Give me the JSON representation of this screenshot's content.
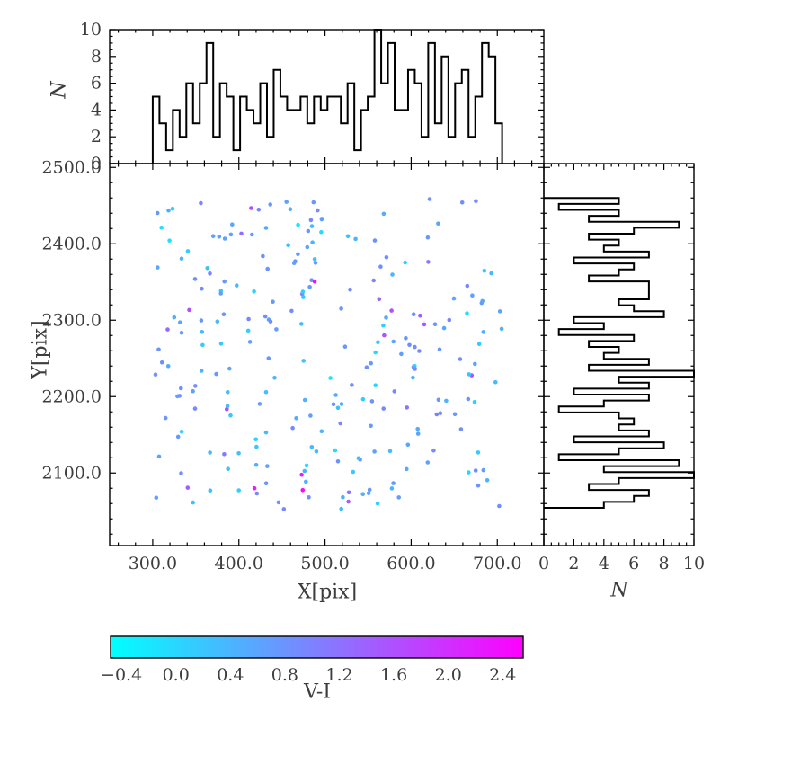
{
  "figure": {
    "bg": "#ffffff",
    "spine_color": "#000000",
    "series_color": "#000000",
    "tick_label_color": "#3d3d3d"
  },
  "chart_data": [
    {
      "id": "top_histogram",
      "type": "bar",
      "style": "step-histogram",
      "ylabel": "N",
      "ylim": [
        0,
        10
      ],
      "yticks": [
        0,
        2,
        4,
        6,
        8,
        10
      ],
      "ytick_labels": [
        "0",
        "2",
        "4",
        "6",
        "8",
        "10"
      ],
      "xlim": [
        250,
        754
      ],
      "bin_start": 300,
      "bin_width": 7.8,
      "values": [
        5,
        3,
        1,
        4,
        2,
        6,
        3,
        6,
        9,
        2,
        6,
        5,
        1,
        5,
        4,
        3,
        6,
        2,
        7,
        5,
        4,
        4,
        5,
        3,
        5,
        4,
        5,
        5,
        3,
        6,
        1,
        4,
        5,
        10,
        6,
        9,
        4,
        4,
        7,
        6,
        2,
        9,
        3,
        8,
        2,
        6,
        7,
        2,
        5,
        9,
        8,
        3
      ]
    },
    {
      "id": "scatter_main",
      "type": "scatter",
      "xlabel": "X[pix]",
      "ylabel": "Y[pix]",
      "xlim": [
        250,
        754
      ],
      "ylim": [
        2005,
        2505
      ],
      "xticks": [
        300,
        400,
        500,
        600,
        700
      ],
      "xtick_labels": [
        "300.0",
        "400.0",
        "500.0",
        "600.0",
        "700.0"
      ],
      "yticks": [
        2100,
        2200,
        2300,
        2400,
        2500
      ],
      "ytick_labels": [
        "2100.0",
        "2200.0",
        "2300.0",
        "2400.0",
        "2500.0"
      ],
      "x_minor_step": 20,
      "y_minor_step": 20,
      "color_by": "V-I",
      "marker_size_px": 4.6,
      "points_generator": {
        "seed": 20240613,
        "count": 250,
        "x_range": [
          300,
          706
        ],
        "y_range": [
          2052,
          2460
        ],
        "vi_main_range": [
          -0.25,
          0.95
        ],
        "vi_purple_range": [
          0.95,
          1.7
        ],
        "purple_fraction": 0.06,
        "vi_magenta_range": [
          2.15,
          2.5
        ],
        "magenta_fraction": 0.013
      }
    },
    {
      "id": "right_histogram",
      "type": "barh",
      "style": "step-histogram",
      "xlabel": "N",
      "xlim": [
        0,
        10
      ],
      "xticks": [
        0,
        2,
        4,
        6,
        8,
        10
      ],
      "xtick_labels": [
        "0",
        "2",
        "4",
        "6",
        "8",
        "10"
      ],
      "ylim": [
        2005,
        2505
      ],
      "bin_start": 2460,
      "bin_width": 7.8,
      "values": [
        5,
        1,
        5,
        3,
        9,
        6,
        3,
        5,
        4,
        7,
        2,
        6,
        5,
        3,
        7,
        7,
        7,
        5,
        6,
        8,
        2,
        4,
        1,
        6,
        3,
        5,
        4,
        7,
        3,
        10,
        5,
        7,
        2,
        7,
        4,
        1,
        5,
        6,
        5,
        7,
        2,
        8,
        5,
        1,
        9,
        4,
        10,
        5,
        3,
        7,
        6,
        4
      ]
    },
    {
      "id": "colorbar",
      "label": "V-I",
      "orientation": "horizontal",
      "vmin": -0.48,
      "vmax": 2.55,
      "ticks": [
        -0.4,
        0.0,
        0.4,
        0.8,
        1.2,
        1.6,
        2.0,
        2.4
      ],
      "tick_labels": [
        "−0.4",
        "0.0",
        "0.4",
        "0.8",
        "1.2",
        "1.6",
        "2.0",
        "2.4"
      ],
      "cmap": "cool",
      "cmap_start": "#00ffff",
      "cmap_end": "#ff00ff"
    }
  ]
}
